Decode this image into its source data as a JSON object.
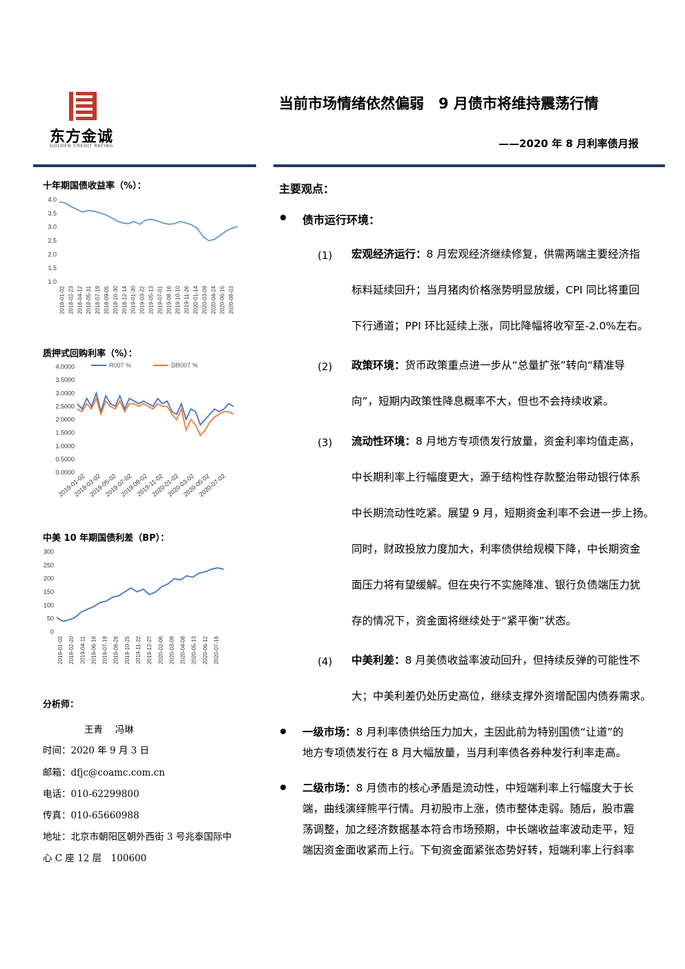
{
  "logo": {
    "name": "东方金诚",
    "english": "GOLDEN CREDIT RATING",
    "color": "#c0392b"
  },
  "header": {
    "title": "当前市场情绪依然偏弱　9 月债市将维持震荡行情",
    "subtitle": "——2020 年 8 月利率债月报",
    "rule_color": "#1f3864"
  },
  "sidebar": {
    "chart1_title": "十年期国债收益率（%）：",
    "chart2_title": "质押式回购利率（%）：",
    "chart3_title": "中美 10 年期国债利差（BP）：",
    "analysts_label": "分析师：",
    "analysts": "王青　 冯琳",
    "date": {
      "label": "时间：",
      "value": "2020 年 9 月 3 日"
    },
    "email": {
      "label": "邮箱：",
      "value": "dfjc@coamc.com.cn"
    },
    "phone": {
      "label": "电话：",
      "value": "010-62299800"
    },
    "fax": {
      "label": "传真：",
      "value": "010-65660988"
    },
    "address": {
      "label": "地址：",
      "value": "北京市朝阳区朝外西街 3 号兆泰国际中",
      "value2": "心 C 座 12 层　100600"
    }
  },
  "main": {
    "heading": "主要观点：",
    "bullet1": "债市运行环境：",
    "items": [
      {
        "num": "(1)",
        "bold": "宏观经济运行：",
        "lines": [
          "8 月宏观经济继续修复，供需两端主要经济指",
          "标料延续回升；当月猪肉价格涨势明显放缓，CPI 同比将重回",
          "下行通道；PPI 环比延续上涨，同比降幅将收窄至-2.0%左右。"
        ]
      },
      {
        "num": "(2)",
        "bold": "政策环境：",
        "lines": [
          "货币政策重点进一步从“总量扩张”转向“精准导",
          "向”，短期内政策性降息概率不大，但也不会持续收紧。"
        ]
      },
      {
        "num": "(3)",
        "bold": "流动性环境：",
        "lines": [
          "8 月地方专项债发行放量，资金利率均值走高，",
          "中长期利率上行幅度更大，源于结构性存款整治带动银行体系",
          "中长期流动性吃紧。展望 9 月，短期资金利率不会进一步上扬。",
          "同时，财政投放力度加大，利率债供给规模下降，中长期资金",
          "面压力将有望缓解。但在央行不实施降准、银行负债端压力犹",
          "存的情况下，资金面将继续处于“紧平衡”状态。"
        ]
      },
      {
        "num": "(4)",
        "bold": "中美利差：",
        "lines": [
          "8 月美债收益率波动回升，但持续反弹的可能性不",
          "大；中美利差仍处历史高位，继续支撑外资增配国内债券需求。"
        ]
      }
    ],
    "bullet2_bold": "一级市场：",
    "bullet2_lines": [
      "8 月利率债供给压力加大，主因此前为特别国债“让道”的",
      "地方专项债发行在 8 月大幅放量，当月利率债各券种发行利率走高。"
    ],
    "bullet3_bold": "二级市场：",
    "bullet3_lines": [
      "8 月债市的核心矛盾是流动性，中短端利率上行幅度大于长",
      "端，曲线演绎熊平行情。月初股市上涨，债市整体走弱。随后，股市震",
      "荡调整，加之经济数据基本符合市场预期，中长端收益率波动走平，短",
      "端因资金面收紧而上行。下旬资金面紧张态势好转，短端利率上行斜率"
    ]
  },
  "chart_data": [
    {
      "type": "line",
      "title": "十年期国债收益率（%）：",
      "ylim": [
        1.0,
        4.0
      ],
      "yticks": [
        "4.0",
        "3.5",
        "3.0",
        "2.5",
        "2.0",
        "1.5",
        "1.0"
      ],
      "xticks": [
        "2018-01-02",
        "2018-02-23",
        "2018-04-12",
        "2018-05-31",
        "2018-07-19",
        "2018-09-05",
        "2018-10-30",
        "2018-12-14",
        "2019-01-30",
        "2019-03-22",
        "2019-05-13",
        "2019-07-01",
        "2019-08-16",
        "2019-10-10",
        "2019-11-26",
        "2020-01-14",
        "2020-03-09",
        "2020-04-24",
        "2020-06-15",
        "2020-08-03"
      ],
      "series": [
        {
          "color": "#5b9bd5",
          "values": [
            3.92,
            3.88,
            3.75,
            3.65,
            3.55,
            3.6,
            3.58,
            3.52,
            3.45,
            3.35,
            3.22,
            3.15,
            3.12,
            3.2,
            3.1,
            3.25,
            3.28,
            3.22,
            3.15,
            3.1,
            3.12,
            3.2,
            3.15,
            3.08,
            2.95,
            2.65,
            2.5,
            2.55,
            2.7,
            2.85,
            2.95,
            3.02
          ]
        }
      ]
    },
    {
      "type": "line",
      "title": "质押式回购利率（%）：",
      "ylim": [
        0,
        4.0
      ],
      "yticks": [
        "4.0000",
        "3.5000",
        "3.0000",
        "2.5000",
        "2.0000",
        "1.5000",
        "1.0000",
        "0.5000",
        "0.0000"
      ],
      "xticks": [
        "2019-01-02",
        "2019-03-02",
        "2019-05-02",
        "2019-07-02",
        "2019-09-02",
        "2019-11-02",
        "2020-01-02",
        "2020-03-02",
        "2020-05-02",
        "2020-07-02"
      ],
      "series": [
        {
          "name": "R007 %",
          "color": "#4472c4",
          "values": [
            2.6,
            2.4,
            2.8,
            2.5,
            3.0,
            2.3,
            2.9,
            2.6,
            2.5,
            2.9,
            2.4,
            2.8,
            2.7,
            2.6,
            2.7,
            2.6,
            2.5,
            2.8,
            2.6,
            2.7,
            2.3,
            2.2,
            2.6,
            2.0,
            2.4,
            2.3,
            1.8,
            2.0,
            2.2,
            2.4,
            2.3,
            2.4,
            2.6,
            2.5
          ]
        },
        {
          "name": "DR007 %",
          "color": "#ed7d31",
          "values": [
            2.4,
            2.3,
            2.6,
            2.4,
            2.8,
            2.2,
            2.7,
            2.5,
            2.4,
            2.7,
            2.3,
            2.6,
            2.6,
            2.5,
            2.6,
            2.5,
            2.4,
            2.6,
            2.5,
            2.5,
            2.2,
            2.0,
            2.4,
            1.6,
            2.0,
            1.8,
            1.4,
            1.6,
            1.9,
            2.1,
            2.2,
            2.3,
            2.3,
            2.2
          ]
        }
      ]
    },
    {
      "type": "line",
      "title": "中美 10 年期国债利差（BP）：",
      "ylim": [
        0,
        300
      ],
      "yticks": [
        "300",
        "250",
        "200",
        "150",
        "100",
        "50",
        "0"
      ],
      "xticks": [
        "2019-01-02",
        "2019-02-20",
        "2019-04-11",
        "2019-06-16",
        "2019-07-18",
        "2019-08-26",
        "2019-10-25",
        "2019-11-22",
        "2019-12-27",
        "2020-02-06",
        "2020-03-09",
        "2020-04-08",
        "2020-05-13",
        "2020-06-12",
        "2020-07-16"
      ],
      "series": [
        {
          "color": "#4472c4",
          "values": [
            55,
            40,
            45,
            55,
            75,
            85,
            95,
            110,
            115,
            130,
            135,
            150,
            165,
            150,
            160,
            140,
            150,
            170,
            180,
            200,
            195,
            210,
            205,
            220,
            225,
            235,
            240,
            235
          ]
        }
      ]
    }
  ]
}
